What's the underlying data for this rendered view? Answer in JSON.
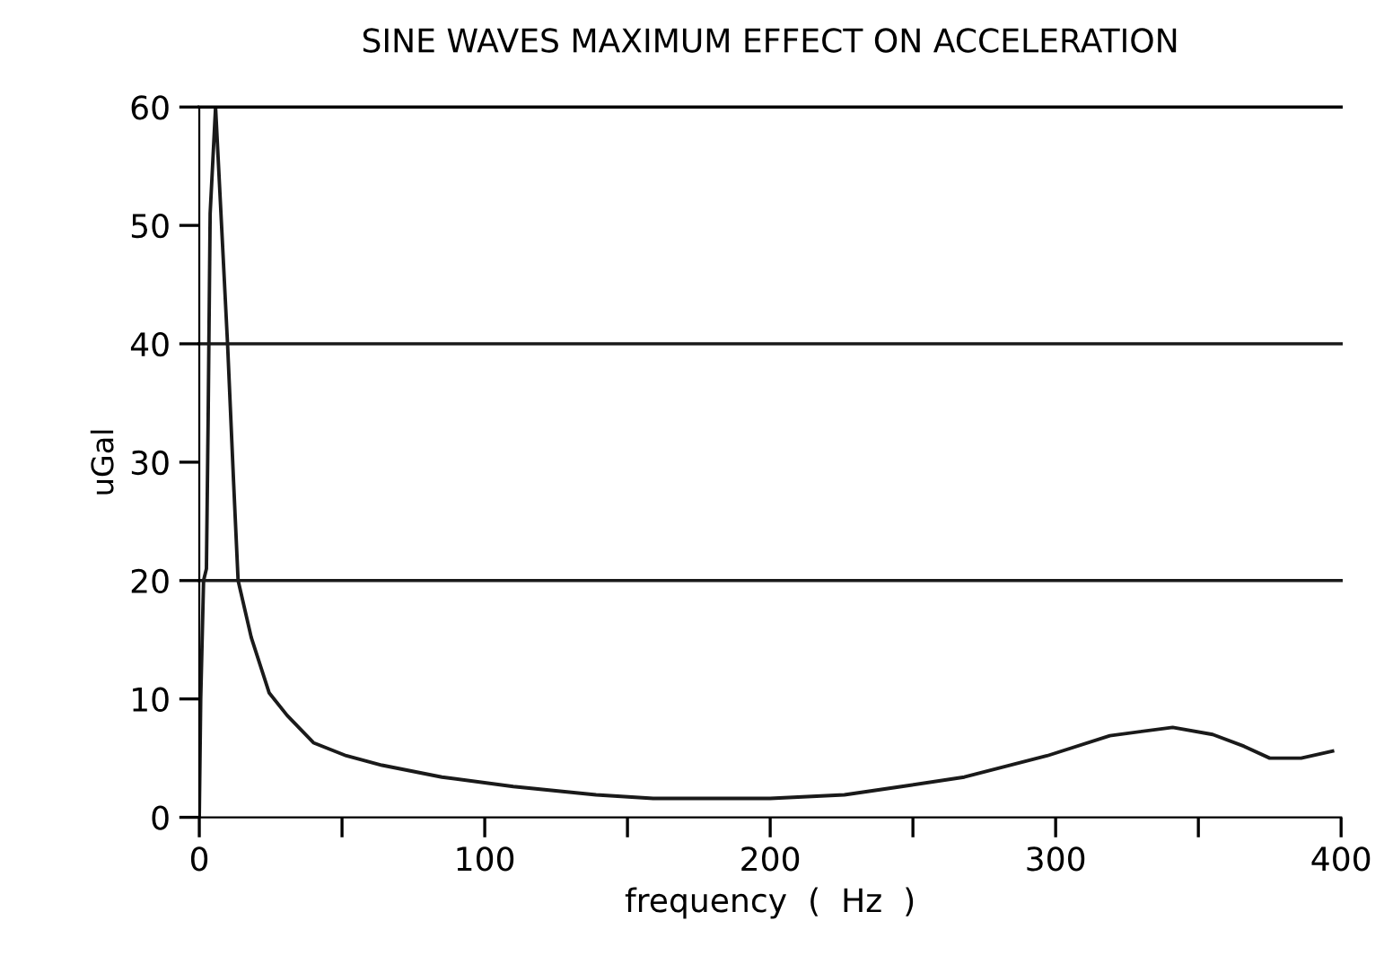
{
  "chart_data": {
    "type": "line",
    "title": "SINE WAVES MAXIMUM EFFECT ON ACCELERATION",
    "xlabel": "frequency  (  Hz  )",
    "ylabel": "uGal",
    "x": [
      0,
      0.5,
      1.5,
      2.5,
      3.1,
      3.8,
      5.7,
      9.9,
      12,
      13.6,
      18.2,
      24.5,
      30.8,
      40,
      51.5,
      64,
      85,
      110,
      139,
      159,
      200,
      226,
      246,
      268,
      297,
      319,
      341,
      355,
      366,
      375,
      386,
      397
    ],
    "series": [
      {
        "color": "#1a1a1a",
        "values": [
          0,
          10,
          20,
          21,
          33.6,
          51,
          60,
          40,
          28.4,
          20,
          15.2,
          10.5,
          8.6,
          6.3,
          5.2,
          4.4,
          3.4,
          2.6,
          1.9,
          1.6,
          1.6,
          1.9,
          2.6,
          3.4,
          5.2,
          6.9,
          7.6,
          7.0,
          6.0,
          5.0,
          5.0,
          5.6
        ]
      }
    ],
    "xlim": [
      0,
      400
    ],
    "ylim": [
      0,
      60
    ],
    "xticks": [
      0,
      {
        "value": 50,
        "label": null
      },
      100,
      {
        "value": 150,
        "label": null
      },
      200,
      {
        "value": 250,
        "label": null
      },
      300,
      {
        "value": 350,
        "label": null
      },
      400
    ],
    "yticks": [
      0,
      10,
      20,
      30,
      40,
      50,
      60
    ],
    "ref_lines": [
      {
        "axis": "y",
        "value": 20,
        "color": "#1a1a1a"
      },
      {
        "axis": "y",
        "value": 40,
        "color": "#1a1a1a"
      }
    ],
    "grid": false,
    "legend": false,
    "marker": "none",
    "line_style": "solid"
  }
}
